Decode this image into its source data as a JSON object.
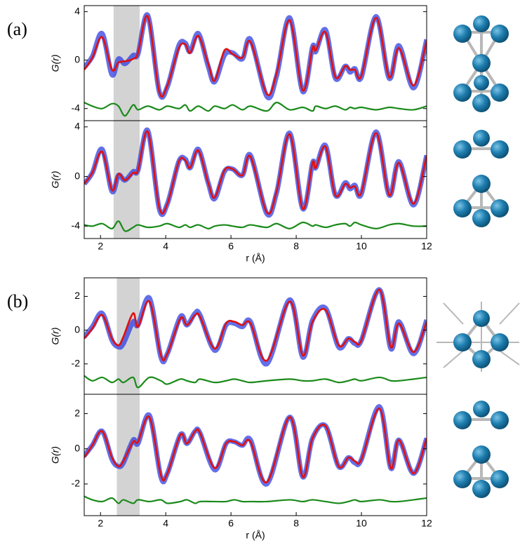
{
  "chart_data": [
    {
      "type": "line",
      "label": "(a)",
      "ylabel": "G(r)",
      "xlim": [
        1.5,
        12
      ],
      "ylim": [
        -5,
        4.5
      ],
      "yticks": [
        -4,
        0,
        4
      ],
      "highlight": [
        2.4,
        3.2
      ],
      "x": [
        1.5,
        1.75,
        2.05,
        2.35,
        2.55,
        2.75,
        3.0,
        3.15,
        3.45,
        3.8,
        4.05,
        4.4,
        4.6,
        4.75,
        5.0,
        5.3,
        5.5,
        5.8,
        6.05,
        6.35,
        6.6,
        7.1,
        7.4,
        7.8,
        8.2,
        8.5,
        8.6,
        8.9,
        9.2,
        9.5,
        9.65,
        9.8,
        10.0,
        10.45,
        10.85,
        11.15,
        11.6,
        12
      ],
      "series": [
        {
          "color": "#2f3fe0",
          "values": [
            -0.6,
            0.3,
            2.2,
            -1.2,
            0.1,
            -0.3,
            0.4,
            0.5,
            3.7,
            -2.6,
            -2.2,
            1.2,
            1.4,
            0.7,
            2.2,
            -0.5,
            -1.8,
            0.4,
            0.6,
            0.1,
            1.7,
            -3.0,
            -1.3,
            3.5,
            -2.6,
            1.1,
            0.7,
            2.5,
            -1.5,
            -0.5,
            -1.0,
            -0.7,
            -1.4,
            3.6,
            -1.5,
            1.2,
            -2.3,
            1.7
          ]
        },
        {
          "color": "#e01010",
          "values": [
            -0.8,
            0.2,
            1.9,
            -0.8,
            -0.2,
            -0.1,
            0.1,
            0.6,
            3.6,
            -2.6,
            -2.1,
            1.0,
            1.3,
            0.6,
            2.0,
            -0.3,
            -1.7,
            0.8,
            0.5,
            0.2,
            1.5,
            -2.8,
            -1.1,
            3.3,
            -2.5,
            1.0,
            0.8,
            2.3,
            -1.4,
            -0.5,
            -0.8,
            -0.8,
            -1.3,
            3.5,
            -1.4,
            1.0,
            -2.1,
            1.6
          ]
        },
        {
          "color": "#1a8a1a",
          "values": [
            -3.5,
            -3.8,
            -4.0,
            -3.6,
            -3.8,
            -4.6,
            -3.7,
            -4.1,
            -3.8,
            -4.1,
            -3.8,
            -4.0,
            -3.7,
            -4.2,
            -3.8,
            -4.2,
            -3.8,
            -4.0,
            -3.7,
            -4.1,
            -3.8,
            -4.2,
            -3.5,
            -4.1,
            -3.9,
            -4.2,
            -3.8,
            -4.0,
            -3.8,
            -4.1,
            -3.9,
            -4.0,
            -3.9,
            -4.1,
            -3.9,
            -4.0,
            -4.1,
            -3.8
          ]
        }
      ]
    },
    {
      "type": "line",
      "ylabel": "G(r)",
      "xlabel": "r (Å)",
      "xlim": [
        1.5,
        12
      ],
      "xticks": [
        2,
        4,
        6,
        8,
        10,
        12
      ],
      "ylim": [
        -5,
        4.5
      ],
      "yticks": [
        -4,
        0,
        4
      ],
      "highlight": [
        2.4,
        3.2
      ],
      "x": [
        1.5,
        1.75,
        2.05,
        2.35,
        2.55,
        2.75,
        3.0,
        3.15,
        3.45,
        3.8,
        4.05,
        4.4,
        4.6,
        4.75,
        5.0,
        5.3,
        5.5,
        5.8,
        6.05,
        6.35,
        6.6,
        7.1,
        7.4,
        7.8,
        8.2,
        8.5,
        8.6,
        8.9,
        9.2,
        9.5,
        9.65,
        9.8,
        10.0,
        10.45,
        10.85,
        11.15,
        11.6,
        12
      ],
      "series": [
        {
          "color": "#2f3fe0",
          "values": [
            -0.6,
            0.3,
            2.2,
            -1.2,
            0.1,
            -0.3,
            0.4,
            0.5,
            3.7,
            -2.6,
            -2.2,
            1.2,
            1.4,
            0.7,
            2.2,
            -0.5,
            -1.8,
            0.4,
            0.6,
            0.1,
            1.7,
            -3.0,
            -1.3,
            3.5,
            -2.6,
            1.1,
            0.7,
            2.5,
            -1.5,
            -0.5,
            -1.0,
            -0.7,
            -1.4,
            3.6,
            -1.5,
            1.2,
            -2.3,
            1.7
          ]
        },
        {
          "color": "#e01010",
          "values": [
            -0.6,
            0.3,
            2.0,
            -1.1,
            0.2,
            -0.3,
            0.3,
            0.5,
            3.6,
            -2.5,
            -2.2,
            1.2,
            1.3,
            0.7,
            2.1,
            -0.5,
            -1.7,
            0.5,
            0.6,
            0.1,
            1.6,
            -2.9,
            -1.2,
            3.4,
            -2.6,
            1.1,
            0.7,
            2.4,
            -1.5,
            -0.6,
            -0.9,
            -0.8,
            -1.3,
            3.5,
            -1.5,
            1.1,
            -2.2,
            1.7
          ]
        },
        {
          "color": "#1a8a1a",
          "values": [
            -3.9,
            -4.0,
            -3.8,
            -4.2,
            -3.6,
            -4.4,
            -4.1,
            -3.9,
            -4.1,
            -4.0,
            -3.8,
            -4.1,
            -3.9,
            -4.1,
            -3.9,
            -4.2,
            -4.0,
            -3.9,
            -4.0,
            -4.1,
            -3.9,
            -4.1,
            -3.8,
            -4.2,
            -3.7,
            -4.0,
            -3.9,
            -4.1,
            -3.9,
            -3.8,
            -4.0,
            -3.7,
            -3.9,
            -4.2,
            -3.9,
            -3.8,
            -4.0,
            -4.0
          ]
        }
      ]
    },
    {
      "type": "line",
      "label": "(b)",
      "ylabel": "G(r)",
      "xlim": [
        1.5,
        12
      ],
      "ylim": [
        -3.8,
        3.1
      ],
      "yticks": [
        -2,
        0,
        2
      ],
      "highlight": [
        2.5,
        3.2
      ],
      "x": [
        1.5,
        1.75,
        2.05,
        2.35,
        2.55,
        2.7,
        3.0,
        3.15,
        3.5,
        3.85,
        4.05,
        4.45,
        4.65,
        4.9,
        5.05,
        5.5,
        5.85,
        6.1,
        6.35,
        6.6,
        7.1,
        7.8,
        8.2,
        8.5,
        8.9,
        9.3,
        9.6,
        9.8,
        10.0,
        10.55,
        10.9,
        11.15,
        11.6,
        12
      ],
      "series": [
        {
          "color": "#2f3fe0",
          "values": [
            -0.4,
            0.2,
            1.0,
            -0.6,
            -1.0,
            -0.8,
            0.5,
            0.3,
            1.9,
            -1.6,
            -1.4,
            0.8,
            0.3,
            1.0,
            0.9,
            -1.2,
            0.3,
            0.4,
            0.2,
            0.5,
            -2.0,
            1.8,
            -1.6,
            0.6,
            1.3,
            -1.0,
            -0.5,
            -0.8,
            -0.6,
            2.4,
            -1.1,
            0.5,
            -1.4,
            0.6
          ]
        },
        {
          "color": "#e01010",
          "values": [
            -0.5,
            0.1,
            0.9,
            -0.5,
            -0.9,
            -0.4,
            1.0,
            0.2,
            1.7,
            -1.5,
            -1.4,
            0.7,
            0.3,
            0.9,
            0.8,
            -1.1,
            0.4,
            0.5,
            0.3,
            0.4,
            -1.8,
            1.7,
            -1.5,
            0.5,
            1.2,
            -0.9,
            -0.5,
            -0.7,
            -0.6,
            2.4,
            -1.0,
            0.4,
            -1.3,
            0.5
          ]
        },
        {
          "color": "#1a8a1a",
          "values": [
            -2.7,
            -3.0,
            -2.8,
            -3.1,
            -2.9,
            -3.1,
            -2.8,
            -3.4,
            -2.8,
            -3.0,
            -3.2,
            -2.9,
            -3.0,
            -3.1,
            -2.9,
            -3.1,
            -3.0,
            -2.9,
            -3.0,
            -3.1,
            -3.0,
            -2.9,
            -3.0,
            -3.0,
            -2.9,
            -3.1,
            -3.0,
            -2.9,
            -3.0,
            -2.8,
            -3.0,
            -3.0,
            -2.9,
            -2.8
          ]
        }
      ]
    },
    {
      "type": "line",
      "ylabel": "G(r)",
      "xlabel": "r (Å)",
      "xlim": [
        1.5,
        12
      ],
      "xticks": [
        2,
        4,
        6,
        8,
        10,
        12
      ],
      "ylim": [
        -3.8,
        3.1
      ],
      "yticks": [
        -2,
        0,
        2
      ],
      "highlight": [
        2.5,
        3.2
      ],
      "x": [
        1.5,
        1.75,
        2.05,
        2.35,
        2.55,
        2.7,
        3.0,
        3.15,
        3.5,
        3.85,
        4.05,
        4.45,
        4.65,
        4.9,
        5.05,
        5.5,
        5.85,
        6.1,
        6.35,
        6.6,
        7.1,
        7.8,
        8.2,
        8.5,
        8.9,
        9.3,
        9.6,
        9.8,
        10.0,
        10.55,
        10.9,
        11.15,
        11.6,
        12
      ],
      "series": [
        {
          "color": "#2f3fe0",
          "values": [
            -0.4,
            0.2,
            1.0,
            -0.6,
            -1.0,
            -0.8,
            0.5,
            0.3,
            1.9,
            -1.6,
            -1.4,
            0.8,
            0.3,
            1.0,
            0.9,
            -1.2,
            0.3,
            0.4,
            0.2,
            0.5,
            -2.0,
            1.8,
            -1.6,
            0.6,
            1.3,
            -1.0,
            -0.5,
            -0.8,
            -0.6,
            2.4,
            -1.1,
            0.5,
            -1.4,
            0.6
          ]
        },
        {
          "color": "#e01010",
          "values": [
            -0.5,
            0.2,
            1.0,
            -0.5,
            -1.0,
            -0.7,
            0.4,
            0.4,
            1.8,
            -1.5,
            -1.4,
            0.8,
            0.3,
            1.0,
            0.9,
            -1.1,
            0.3,
            0.4,
            0.2,
            0.4,
            -1.9,
            1.8,
            -1.6,
            0.6,
            1.3,
            -1.0,
            -0.5,
            -0.7,
            -0.6,
            2.3,
            -1.1,
            0.5,
            -1.4,
            0.6
          ]
        },
        {
          "color": "#1a8a1a",
          "values": [
            -2.7,
            -2.9,
            -3.0,
            -2.8,
            -3.1,
            -2.9,
            -3.1,
            -2.9,
            -3.0,
            -2.9,
            -3.1,
            -3.0,
            -2.9,
            -3.1,
            -3.0,
            -3.0,
            -3.0,
            -2.9,
            -3.0,
            -3.0,
            -3.0,
            -2.9,
            -3.0,
            -2.9,
            -3.0,
            -3.1,
            -3.0,
            -2.9,
            -3.0,
            -2.9,
            -3.0,
            -3.0,
            -2.9,
            -2.8
          ]
        }
      ]
    }
  ]
}
